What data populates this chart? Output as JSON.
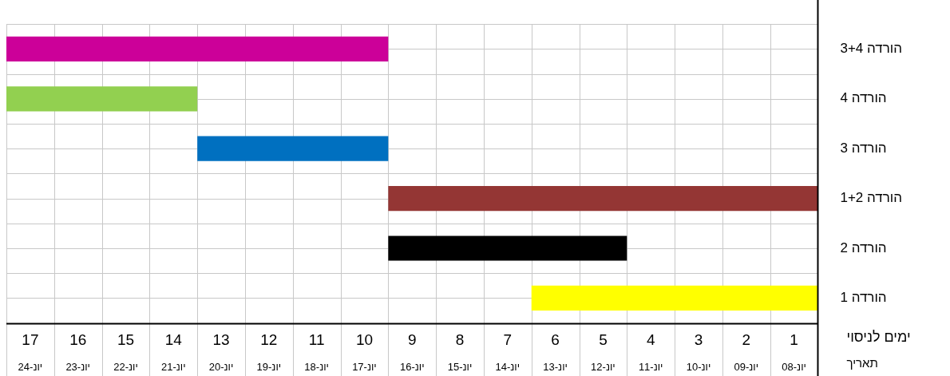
{
  "chart_data": {
    "type": "bar",
    "orientation": "horizontal",
    "categories": [
      "הורדה 3+4",
      "הורדה 4",
      "הורדה 3",
      "הורדה 1+2",
      "הורדה 2",
      "הורדה 1"
    ],
    "values": [
      8,
      4,
      4,
      9,
      5,
      6
    ],
    "base": [
      9.5,
      13.5,
      9.5,
      0.5,
      4.5,
      0.5
    ],
    "colors": [
      "#cc0099",
      "#92d050",
      "#0070c0",
      "#943634",
      "#000000",
      "#ffff00"
    ],
    "xlim": [
      17.5,
      0.5
    ],
    "xticks": [
      1,
      2,
      3,
      4,
      5,
      6,
      7,
      8,
      9,
      10,
      11,
      12,
      13,
      14,
      15,
      16,
      17
    ],
    "xlabel": "ימים לניסוי",
    "x2lim": [
      "--06-24T12:00",
      "--06-07T12:00"
    ],
    "x2ticks": [
      {
        "value": "--06-08",
        "label": "08-יונ"
      },
      {
        "value": "--06-09",
        "label": "09-יונ"
      },
      {
        "value": "--06-10",
        "label": "10-יונ"
      },
      {
        "value": "--06-11",
        "label": "11-יונ"
      },
      {
        "value": "--06-12",
        "label": "12-יונ"
      },
      {
        "value": "--06-13",
        "label": "13-יונ"
      },
      {
        "value": "--06-14",
        "label": "14-יונ"
      },
      {
        "value": "--06-15",
        "label": "15-יונ"
      },
      {
        "value": "--06-16",
        "label": "16-יונ"
      },
      {
        "value": "--06-17",
        "label": "17-יונ"
      },
      {
        "value": "--06-18",
        "label": "18-יונ"
      },
      {
        "value": "--06-19",
        "label": "19-יונ"
      },
      {
        "value": "--06-20",
        "label": "20-יונ"
      },
      {
        "value": "--06-21",
        "label": "21-יונ"
      },
      {
        "value": "--06-22",
        "label": "22-יונ"
      },
      {
        "value": "--06-23",
        "label": "23-יונ"
      },
      {
        "value": "--06-24",
        "label": "24-יונ"
      }
    ],
    "x2label": "תאריך",
    "grid": true,
    "legend": false
  }
}
